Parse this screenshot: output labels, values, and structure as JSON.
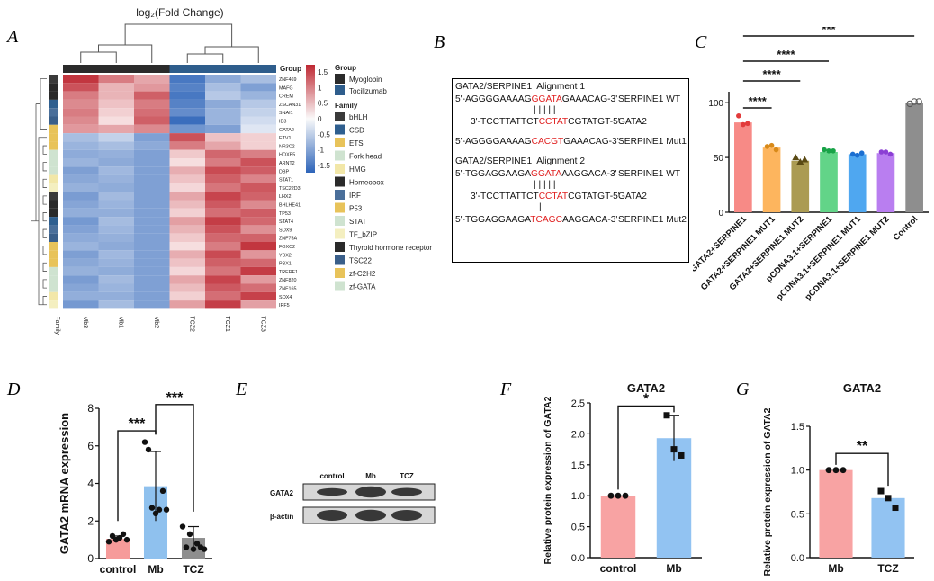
{
  "panels": {
    "A": {
      "label": "A",
      "title": "log₂(Fold Change)",
      "columns": [
        "Mb3",
        "Mb1",
        "Mb2",
        "TCZ2",
        "TCZ1",
        "TCZ3"
      ],
      "family_label": "Family",
      "group_label": "Group",
      "genes": [
        "ZNF469",
        "MAFG",
        "CREM",
        "ZSCAN31",
        "SNAI1",
        "ID3",
        "GATA2",
        "ETV1",
        "NR3C2",
        "HOXB5",
        "ARNT2",
        "DBP",
        "STAT1",
        "TSC22D3",
        "LHX2",
        "BHLHE41",
        "TP53",
        "STAT4",
        "SOX9",
        "ZNF75A",
        "FOXC2",
        "YBX2",
        "PBX1",
        "TRERF1",
        "ZNF820",
        "ZNF165",
        "SOX4",
        "IRF5"
      ],
      "colorbar_ticks": [
        "1.5",
        "1",
        "0.5",
        "0",
        "-0.5",
        "-1",
        "-1.5"
      ],
      "legend_group_title": "Group",
      "legend_groups": [
        {
          "name": "Myoglobin",
          "color": "#2b2b2b"
        },
        {
          "name": "Tocilizumab",
          "color": "#2e5d8c"
        }
      ],
      "legend_family_title": "Family",
      "legend_families": [
        {
          "name": "bHLH",
          "color": "#3a3a3a"
        },
        {
          "name": "CSD",
          "color": "#2f5f8f"
        },
        {
          "name": "ETS",
          "color": "#e8c35a"
        },
        {
          "name": "Fork head",
          "color": "#cfe3d0"
        },
        {
          "name": "HMG",
          "color": "#f2e7a8"
        },
        {
          "name": "Homeobox",
          "color": "#2a2a2a"
        },
        {
          "name": "IRF",
          "color": "#4a6f9a"
        },
        {
          "name": "P53",
          "color": "#e8c35a"
        },
        {
          "name": "STAT",
          "color": "#cfe3d0"
        },
        {
          "name": "TF_bZIP",
          "color": "#f4efc0"
        },
        {
          "name": "Thyroid hormone receptor",
          "color": "#2a2a2a"
        },
        {
          "name": "TSC22",
          "color": "#3a5f8a"
        },
        {
          "name": "zf-C2H2",
          "color": "#e8c35a"
        },
        {
          "name": "zf-GATA",
          "color": "#cfe3d0"
        }
      ]
    },
    "B": {
      "label": "B",
      "lines": [
        {
          "segs": [
            {
              "t": "GATA2/SERPINE1  Alignment 1",
              "r": false
            }
          ]
        },
        {
          "segs": [
            {
              "t": "5'-AGGGGAAAAG",
              "r": false
            },
            {
              "t": "GGATA",
              "r": true
            },
            {
              "t": "GAAACAG-3'",
              "r": false
            }
          ],
          "tag": "SERPINE1 WT"
        },
        {
          "segs": [
            {
              "t": "| | | | |",
              "r": false
            }
          ]
        },
        {
          "segs": [
            {
              "t": "3'-TCCTTATTCT",
              "r": false
            },
            {
              "t": "CCTAT",
              "r": true
            },
            {
              "t": "CGTATGT-5'",
              "r": false
            }
          ],
          "tag": "GATA2"
        },
        {
          "segs": [
            {
              "t": "5'-AGGGGAAAAG",
              "r": false
            },
            {
              "t": "CACGT",
              "r": true
            },
            {
              "t": "GAAACAG-3'",
              "r": false
            }
          ],
          "tag": "SERPINE1 Mut1"
        },
        {
          "segs": [
            {
              "t": "GATA2/SERPINE1  Alignment 2",
              "r": false
            }
          ]
        },
        {
          "segs": [
            {
              "t": "5'-TGGAGGAAGA",
              "r": false
            },
            {
              "t": "GGATA",
              "r": true
            },
            {
              "t": "AAGGACA-3'",
              "r": false
            }
          ],
          "tag": "SERPINE1 WT"
        },
        {
          "segs": [
            {
              "t": "| | | | |",
              "r": false
            }
          ]
        },
        {
          "segs": [
            {
              "t": "3'-TCCTTATTCT",
              "r": false
            },
            {
              "t": "CCTAT",
              "r": true
            },
            {
              "t": "CGTATGT-5'",
              "r": false
            }
          ],
          "tag": "GATA2"
        },
        {
          "segs": [
            {
              "t": "|",
              "r": false
            }
          ]
        },
        {
          "segs": [
            {
              "t": "5'-TGGAGGAAGA",
              "r": false
            },
            {
              "t": "TCAGC",
              "r": true
            },
            {
              "t": "AAGGACA-3'",
              "r": false
            }
          ],
          "tag": "SERPINE1 Mut2"
        }
      ]
    },
    "E": {
      "label": "E",
      "lanes": [
        "control",
        "Mb",
        "TCZ"
      ],
      "rows": [
        "GATA2",
        "β-actin"
      ]
    }
  },
  "chart_data": [
    {
      "panel": "C",
      "type": "bar",
      "title": "",
      "categories": [
        "GATA2+SERPINE1",
        "GATA2+SERPINE1 MUT1",
        "GATA2+SERPINE1 MUT2",
        "pCDNA3.1+SERPINE1",
        "pCDNA3.1+SERPINE1 MUT1",
        "pCDNA3.1+SERPINE1 MUT2",
        "Control"
      ],
      "values": [
        82,
        59,
        47,
        55,
        53,
        54,
        100
      ],
      "points": [
        [
          88,
          80,
          81
        ],
        [
          60,
          61,
          57
        ],
        [
          50,
          46,
          48
        ],
        [
          57,
          56,
          56
        ],
        [
          53,
          52,
          54
        ],
        [
          55,
          55,
          53
        ],
        [
          99,
          101,
          101
        ]
      ],
      "colors": [
        "#f78a86",
        "#fdb55e",
        "#ab9b52",
        "#62d488",
        "#4fa7f0",
        "#b97ef0",
        "#8e8e8e"
      ],
      "yticks": [
        0,
        50,
        100
      ],
      "ylim": [
        0,
        110
      ],
      "significance": [
        "****",
        "****",
        "****",
        "***"
      ],
      "xlabel": "",
      "ylabel": ""
    },
    {
      "panel": "D",
      "type": "bar",
      "title": "",
      "categories": [
        "control",
        "Mb",
        "TCZ"
      ],
      "values": [
        1.05,
        3.85,
        1.1
      ],
      "errors": [
        0.15,
        1.85,
        0.6
      ],
      "points": [
        [
          0.9,
          1.2,
          1.0,
          1.1,
          1.3,
          1.0
        ],
        [
          6.2,
          5.8,
          2.7,
          2.4,
          2.6,
          3.6,
          2.6
        ],
        [
          1.7,
          0.6,
          1.3,
          0.5,
          0.8,
          0.6,
          0.5
        ]
      ],
      "colors": [
        "#f69b9a",
        "#8fc1ee",
        "#8e8e8e"
      ],
      "yticks": [
        0,
        2,
        4,
        6,
        8
      ],
      "ylim": [
        0,
        8
      ],
      "ylabel": "GATA2 mRNA expression",
      "xlabel": "",
      "significance": [
        "***",
        "***"
      ]
    },
    {
      "panel": "F",
      "type": "bar",
      "title": "GATA2",
      "categories": [
        "control",
        "Mb"
      ],
      "values": [
        1.0,
        1.93
      ],
      "errors": [
        0,
        0.37
      ],
      "points": [
        [
          1.0,
          1.0,
          1.0
        ],
        [
          2.3,
          1.75,
          1.65
        ]
      ],
      "colors": [
        "#f8a3a3",
        "#92c3f2"
      ],
      "yticks": [
        0.0,
        0.5,
        1.0,
        1.5,
        2.0,
        2.5
      ],
      "ylim": [
        0,
        2.5
      ],
      "ylabel": "Relative protein expression of GATA2",
      "xlabel": "",
      "significance": [
        "*"
      ]
    },
    {
      "panel": "G",
      "type": "bar",
      "title": "GATA2",
      "categories": [
        "Mb",
        "TCZ"
      ],
      "values": [
        1.0,
        0.68
      ],
      "errors": [
        0,
        0
      ],
      "points": [
        [
          1.0,
          1.0,
          1.0
        ],
        [
          0.76,
          0.68,
          0.57
        ]
      ],
      "colors": [
        "#f8a3a3",
        "#92c3f2"
      ],
      "yticks": [
        0.0,
        0.5,
        1.0,
        1.5
      ],
      "ylim": [
        0,
        1.5
      ],
      "ylabel": "Relative protein expression of GATA2",
      "xlabel": "",
      "significance": [
        "**"
      ]
    }
  ]
}
